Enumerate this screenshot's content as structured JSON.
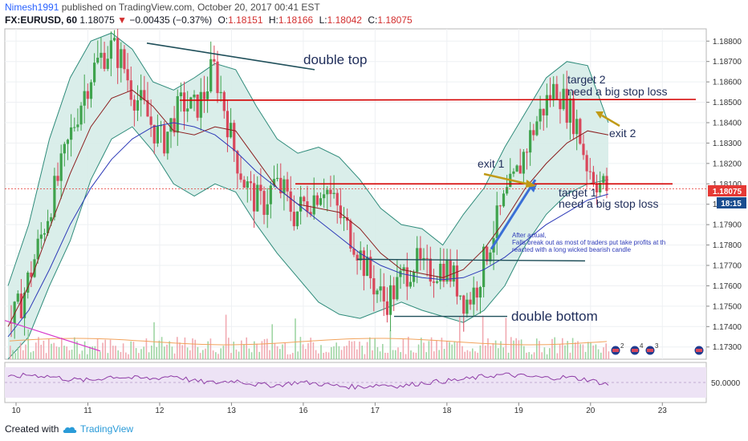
{
  "header": {
    "user": "Nimesh1991",
    "published": "published on TradingView.com, October 20, 2017 00:41 EST",
    "symbol": "FX:EURUSD, 60",
    "last": "1.18075",
    "change": "−0.00435 (−0.37%)",
    "o_label": "O:",
    "o": "1.18151",
    "h_label": "H:",
    "h": "1.18166",
    "l_label": "L:",
    "l": "1.18042",
    "c_label": "C:",
    "c": "1.18075"
  },
  "colors": {
    "bollinger_fill": "#d6ece8",
    "bollinger_line": "#2e8b7a",
    "ma_fast": "#8b1e1e",
    "ma_slow": "#2d3ab8",
    "candle_up": "#3fa34d",
    "candle_down": "#d9475b",
    "annotation_red": "#d40000",
    "annotation_teal": "#1f4f5a",
    "arrow_gold": "#c09a16",
    "arrow_blue": "#3a6fd6",
    "price_tag": "#e53935",
    "rsi_line": "#8e3ba6",
    "rsi_bg": "#ede3f5"
  },
  "annotations": {
    "double_top": "double top",
    "double_bottom": "double bottom",
    "target2_line1": "target 2",
    "target2_line2": "need a big stop loss",
    "target1_line1": "target 1",
    "target1_line2": "need a big stop loss",
    "exit1": "exit 1",
    "exit2": "exit 2",
    "note1": "After actual,",
    "note2": "Falls break out as most of traders put take profits at th",
    "note3": "reacted with a long wicked bearish candle"
  },
  "chart_data": {
    "type": "candlestick",
    "x_tick_labels": [
      "10",
      "11",
      "12",
      "13",
      "16",
      "17",
      "18",
      "19",
      "20",
      "23"
    ],
    "y_tick_labels": [
      "1.18800",
      "1.18700",
      "1.18600",
      "1.18500",
      "1.18400",
      "1.18300",
      "1.18200",
      "1.18100",
      "1.18000",
      "1.17900",
      "1.17800",
      "1.17700",
      "1.17600",
      "1.17500",
      "1.17400",
      "1.17300"
    ],
    "ylim": [
      1.1724,
      1.1886
    ],
    "last_price_tag": "1.18075",
    "countdown_tag": "18:15",
    "rsi_tick_label": "50.0000",
    "close_path": [
      1.1742,
      1.1752,
      1.1768,
      1.1785,
      1.1802,
      1.1818,
      1.1836,
      1.1852,
      1.1865,
      1.1873,
      1.1877,
      1.187,
      1.1855,
      1.1848,
      1.1838,
      1.183,
      1.1841,
      1.185,
      1.1846,
      1.1852,
      1.1868,
      1.185,
      1.1828,
      1.1812,
      1.1803,
      1.18,
      1.181,
      1.1806,
      1.1795,
      1.18,
      1.1804,
      1.181,
      1.18,
      1.179,
      1.1782,
      1.177,
      1.176,
      1.1752,
      1.1758,
      1.1766,
      1.1772,
      1.1766,
      1.1768,
      1.177,
      1.1762,
      1.1752,
      1.1758,
      1.1775,
      1.179,
      1.1803,
      1.1813,
      1.1828,
      1.184,
      1.185,
      1.1858,
      1.1848,
      1.184,
      1.182,
      1.1812,
      1.18075
    ],
    "upper_band_path": [
      1.176,
      1.179,
      1.1832,
      1.1862,
      1.188,
      1.1884,
      1.1876,
      1.186,
      1.1856,
      1.1862,
      1.1869,
      1.1866,
      1.1848,
      1.1832,
      1.1825,
      1.1828,
      1.1823,
      1.1812,
      1.1798,
      1.179,
      1.1788,
      1.178,
      1.1795,
      1.1808,
      1.1828,
      1.1845,
      1.1862,
      1.187,
      1.1868,
      1.184
    ],
    "lower_band_path": [
      1.1724,
      1.1735,
      1.176,
      1.1782,
      1.1812,
      1.1832,
      1.1838,
      1.1826,
      1.181,
      1.1804,
      1.181,
      1.1806,
      1.179,
      1.1776,
      1.1764,
      1.1752,
      1.1746,
      1.1744,
      1.1748,
      1.1752,
      1.1748,
      1.1745,
      1.1742,
      1.1748,
      1.176,
      1.178,
      1.1795,
      1.1805,
      1.181,
      1.1812
    ],
    "sma_fast_path": [
      1.174,
      1.176,
      1.1788,
      1.1815,
      1.1838,
      1.1852,
      1.1856,
      1.1848,
      1.1836,
      1.1834,
      1.1838,
      1.1836,
      1.1822,
      1.1808,
      1.18,
      1.1798,
      1.1796,
      1.1788,
      1.1776,
      1.1768,
      1.1766,
      1.1764,
      1.1768,
      1.1778,
      1.1792,
      1.1808,
      1.182,
      1.183,
      1.1836,
      1.1834
    ],
    "sma_slow_path": [
      1.1735,
      1.1748,
      1.1768,
      1.179,
      1.1808,
      1.1822,
      1.1832,
      1.1838,
      1.184,
      1.1838,
      1.1834,
      1.1826,
      1.1816,
      1.1808,
      1.18,
      1.1792,
      1.1784,
      1.1776,
      1.177,
      1.1766,
      1.1764,
      1.1763,
      1.1764,
      1.1768,
      1.1774,
      1.1782,
      1.179,
      1.1796,
      1.1802,
      1.1805
    ],
    "rsi_path": [
      58,
      62,
      60,
      56,
      55,
      60,
      58,
      57,
      61,
      54,
      52,
      55,
      50,
      49,
      53,
      51,
      48,
      47,
      50,
      48,
      52,
      54,
      56,
      60,
      62,
      60,
      58,
      59,
      56,
      50
    ],
    "levels": {
      "double_top_line": [
        1.1879,
        1.1866
      ],
      "resistance_red": 1.1851,
      "support_red": 1.181,
      "neckline_bottom": 1.1773,
      "double_bottom_line": 1.1745
    }
  }
}
